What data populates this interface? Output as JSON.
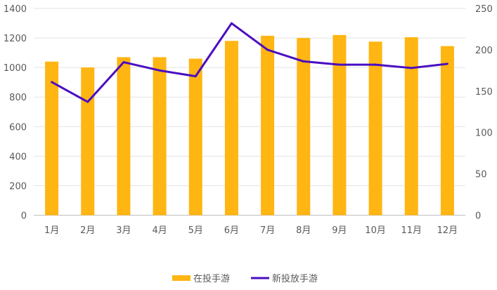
{
  "chart_data": {
    "type": "bar",
    "categories": [
      "1月",
      "2月",
      "3月",
      "4月",
      "5月",
      "6月",
      "7月",
      "8月",
      "9月",
      "10月",
      "11月",
      "12月"
    ],
    "series": [
      {
        "name": "在投手游",
        "type": "bar",
        "axis": "left",
        "color": "#FFB512",
        "values": [
          1040,
          1000,
          1070,
          1070,
          1060,
          1180,
          1215,
          1200,
          1220,
          1175,
          1205,
          1145
        ]
      },
      {
        "name": "新投放手游",
        "type": "line",
        "axis": "right",
        "color": "#4A0DC1",
        "values": [
          161,
          137,
          185,
          175,
          168,
          232,
          200,
          186,
          182,
          182,
          178,
          183
        ]
      }
    ],
    "y_left": {
      "range": [
        0,
        1400
      ],
      "ticks": [
        "0",
        "200",
        "400",
        "600",
        "800",
        "1000",
        "1200",
        "1400"
      ]
    },
    "y_right": {
      "range": [
        0,
        250
      ],
      "ticks": [
        "0",
        "50",
        "100",
        "150",
        "200",
        "250"
      ]
    },
    "grid": true,
    "legend": "bottom-center"
  }
}
